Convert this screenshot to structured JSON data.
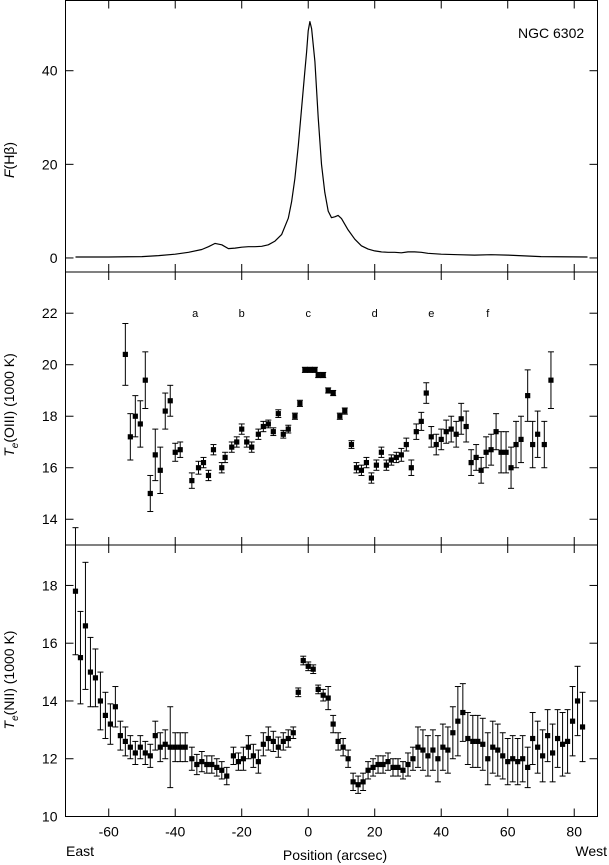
{
  "chart_data": [
    {
      "type": "line",
      "ylabel": "F(Hβ)",
      "annotation": "NGC 6302",
      "ylim": [
        -3,
        55
      ],
      "xlim": [
        -73,
        87
      ],
      "yticks": [
        0,
        20,
        40
      ],
      "x": [
        -70,
        -60,
        -50,
        -45,
        -40,
        -36,
        -32,
        -30,
        -28,
        -26,
        -24,
        -22,
        -20,
        -18,
        -16,
        -14,
        -12,
        -10,
        -8,
        -6,
        -5,
        -4,
        -3,
        -2,
        -1,
        -0.5,
        0,
        0.5,
        1,
        2,
        3,
        4,
        5,
        6,
        7,
        8,
        9,
        10,
        12,
        14,
        16,
        18,
        20,
        22,
        24,
        26,
        28,
        30,
        32,
        34,
        36,
        40,
        45,
        50,
        55,
        60,
        70,
        84
      ],
      "y": [
        0.2,
        0.2,
        0.3,
        0.5,
        0.8,
        1.2,
        1.8,
        2.4,
        3.1,
        2.8,
        2.0,
        2.1,
        2.3,
        2.4,
        2.4,
        2.5,
        2.8,
        3.6,
        5.0,
        8.5,
        12.0,
        17.0,
        24.0,
        32.0,
        40.0,
        44.0,
        48.5,
        50.5,
        49.0,
        42.0,
        30.0,
        20.0,
        14.0,
        10.0,
        8.6,
        8.8,
        9.1,
        8.4,
        6.0,
        4.0,
        2.6,
        1.9,
        1.5,
        1.3,
        1.2,
        1.2,
        1.1,
        1.3,
        1.3,
        1.2,
        1.0,
        0.8,
        0.7,
        0.6,
        0.7,
        0.6,
        0.3,
        0.2
      ]
    },
    {
      "type": "scatter",
      "ylabel": "Te(OIII) (1000 K)",
      "ylim": [
        13,
        23.6
      ],
      "xlim": [
        -73,
        87
      ],
      "yticks": [
        14,
        16,
        18,
        20,
        22
      ],
      "region_labels": [
        {
          "label": "a",
          "x": -34
        },
        {
          "label": "b",
          "x": -20
        },
        {
          "label": "c",
          "x": 0
        },
        {
          "label": "d",
          "x": 20
        },
        {
          "label": "e",
          "x": 37
        },
        {
          "label": "f",
          "x": 54
        }
      ],
      "points": [
        [
          -55,
          20.4,
          1.2
        ],
        [
          -53.5,
          17.2,
          0.9
        ],
        [
          -52,
          18.0,
          0.8
        ],
        [
          -50.5,
          17.7,
          0.9
        ],
        [
          -49,
          19.4,
          1.1
        ],
        [
          -47.5,
          15.0,
          0.7
        ],
        [
          -46,
          16.5,
          1.0
        ],
        [
          -44.5,
          15.9,
          0.9
        ],
        [
          -43,
          18.2,
          0.7
        ],
        [
          -41.5,
          18.6,
          0.6
        ],
        [
          -40,
          16.6,
          0.35
        ],
        [
          -38.5,
          16.7,
          0.3
        ],
        [
          -35,
          15.5,
          0.3
        ],
        [
          -33,
          16.0,
          0.25
        ],
        [
          -31.5,
          16.2,
          0.2
        ],
        [
          -30,
          15.7,
          0.2
        ],
        [
          -28.5,
          16.7,
          0.2
        ],
        [
          -26,
          16.0,
          0.2
        ],
        [
          -25,
          16.4,
          0.2
        ],
        [
          -23,
          16.8,
          0.2
        ],
        [
          -21.5,
          17.0,
          0.2
        ],
        [
          -20,
          17.5,
          0.2
        ],
        [
          -18.5,
          17.0,
          0.2
        ],
        [
          -17,
          16.8,
          0.2
        ],
        [
          -15,
          17.3,
          0.2
        ],
        [
          -13.5,
          17.6,
          0.2
        ],
        [
          -12,
          17.7,
          0.15
        ],
        [
          -10.5,
          17.4,
          0.15
        ],
        [
          -9,
          18.1,
          0.15
        ],
        [
          -7.5,
          17.3,
          0.15
        ],
        [
          -6,
          17.5,
          0.15
        ],
        [
          -4,
          18.0,
          0.12
        ],
        [
          -2.5,
          18.5,
          0.12
        ],
        [
          -1,
          19.8,
          0.1
        ],
        [
          0.5,
          19.8,
          0.1
        ],
        [
          2,
          19.8,
          0.1
        ],
        [
          3,
          19.6,
          0.1
        ],
        [
          4.5,
          19.6,
          0.1
        ],
        [
          6,
          19.0,
          0.1
        ],
        [
          7.5,
          18.9,
          0.1
        ],
        [
          9.5,
          18.0,
          0.12
        ],
        [
          11,
          18.2,
          0.12
        ],
        [
          13,
          16.9,
          0.15
        ],
        [
          14.5,
          16.0,
          0.2
        ],
        [
          16,
          15.9,
          0.2
        ],
        [
          17.5,
          16.2,
          0.2
        ],
        [
          19,
          15.6,
          0.2
        ],
        [
          20.5,
          16.1,
          0.2
        ],
        [
          22,
          16.6,
          0.2
        ],
        [
          23.5,
          16.1,
          0.2
        ],
        [
          25,
          16.3,
          0.2
        ],
        [
          26.5,
          16.4,
          0.2
        ],
        [
          28,
          16.5,
          0.25
        ],
        [
          29.5,
          16.9,
          0.25
        ],
        [
          31,
          16.0,
          0.3
        ],
        [
          32.5,
          17.4,
          0.3
        ],
        [
          34,
          17.8,
          0.35
        ],
        [
          35.5,
          18.9,
          0.4
        ],
        [
          37,
          17.2,
          0.4
        ],
        [
          38.5,
          16.9,
          0.4
        ],
        [
          40,
          17.1,
          0.4
        ],
        [
          41.5,
          17.4,
          0.45
        ],
        [
          43,
          17.5,
          0.5
        ],
        [
          44.5,
          17.3,
          0.5
        ],
        [
          46,
          17.9,
          0.6
        ],
        [
          47.5,
          17.6,
          0.6
        ],
        [
          49,
          16.2,
          0.5
        ],
        [
          50.5,
          16.4,
          0.5
        ],
        [
          52,
          15.9,
          0.5
        ],
        [
          53.5,
          16.6,
          0.6
        ],
        [
          55,
          16.7,
          0.6
        ],
        [
          56.5,
          17.4,
          0.7
        ],
        [
          58,
          16.6,
          0.8
        ],
        [
          59.5,
          16.6,
          0.8
        ],
        [
          61,
          16.0,
          0.8
        ],
        [
          62.5,
          16.9,
          0.9
        ],
        [
          64,
          17.1,
          0.9
        ],
        [
          66,
          18.8,
          1.0
        ],
        [
          67.5,
          16.9,
          0.9
        ],
        [
          69,
          17.3,
          0.9
        ],
        [
          71,
          16.9,
          0.9
        ],
        [
          73,
          19.4,
          1.1
        ]
      ]
    },
    {
      "type": "scatter",
      "ylabel": "Te(NII) (1000 K)",
      "xlabel": "Position (arcsec)",
      "left_label": "East",
      "right_label": "West",
      "ylim": [
        10,
        19.4
      ],
      "xlim": [
        -73,
        87
      ],
      "yticks": [
        10,
        12,
        14,
        16,
        18
      ],
      "xticks": [
        -60,
        -40,
        -20,
        0,
        20,
        40,
        60,
        80
      ],
      "points": [
        [
          -70,
          17.8,
          2.2
        ],
        [
          -68.5,
          15.5,
          1.6
        ],
        [
          -67,
          16.6,
          2.2
        ],
        [
          -65.5,
          15.0,
          1.2
        ],
        [
          -64,
          14.8,
          1.0
        ],
        [
          -62.5,
          14.0,
          1.0
        ],
        [
          -61,
          13.5,
          0.8
        ],
        [
          -59.5,
          13.2,
          0.7
        ],
        [
          -58,
          13.8,
          0.7
        ],
        [
          -56.5,
          12.8,
          0.5
        ],
        [
          -55,
          12.6,
          0.5
        ],
        [
          -53.5,
          12.4,
          0.4
        ],
        [
          -52,
          12.2,
          0.4
        ],
        [
          -50.5,
          12.4,
          0.4
        ],
        [
          -49,
          12.2,
          0.4
        ],
        [
          -47.5,
          12.1,
          0.4
        ],
        [
          -46,
          12.8,
          0.5
        ],
        [
          -44.5,
          12.4,
          0.5
        ],
        [
          -43,
          12.5,
          0.5
        ],
        [
          -41.5,
          12.4,
          1.4
        ],
        [
          -40,
          12.4,
          0.5
        ],
        [
          -38.5,
          12.4,
          0.5
        ],
        [
          -37,
          12.4,
          0.5
        ],
        [
          -35,
          12.0,
          0.4
        ],
        [
          -33.5,
          11.8,
          0.35
        ],
        [
          -32,
          11.9,
          0.35
        ],
        [
          -30.5,
          11.8,
          0.3
        ],
        [
          -29,
          11.8,
          0.3
        ],
        [
          -27.5,
          11.7,
          0.3
        ],
        [
          -26,
          11.6,
          0.3
        ],
        [
          -24.5,
          11.4,
          0.3
        ],
        [
          -22.5,
          12.1,
          0.3
        ],
        [
          -21,
          11.9,
          0.3
        ],
        [
          -19.5,
          12.0,
          0.4
        ],
        [
          -18,
          12.4,
          0.4
        ],
        [
          -16.5,
          12.1,
          0.4
        ],
        [
          -15,
          11.9,
          0.4
        ],
        [
          -13.5,
          12.5,
          0.4
        ],
        [
          -12,
          12.7,
          0.4
        ],
        [
          -10.5,
          12.6,
          0.35
        ],
        [
          -9,
          12.4,
          0.35
        ],
        [
          -7.5,
          12.6,
          0.3
        ],
        [
          -6,
          12.7,
          0.3
        ],
        [
          -4.5,
          12.9,
          0.2
        ],
        [
          -3,
          14.3,
          0.15
        ],
        [
          -1.5,
          15.4,
          0.15
        ],
        [
          0,
          15.2,
          0.15
        ],
        [
          1.5,
          15.1,
          0.15
        ],
        [
          3,
          14.4,
          0.15
        ],
        [
          4.5,
          14.2,
          0.2
        ],
        [
          6,
          14.1,
          0.4
        ],
        [
          7.5,
          13.2,
          0.3
        ],
        [
          9,
          12.6,
          0.3
        ],
        [
          10.5,
          12.4,
          0.3
        ],
        [
          12,
          12.0,
          0.3
        ],
        [
          13.5,
          11.2,
          0.3
        ],
        [
          15,
          11.1,
          0.3
        ],
        [
          16.5,
          11.2,
          0.3
        ],
        [
          18,
          11.6,
          0.3
        ],
        [
          19.5,
          11.7,
          0.3
        ],
        [
          21,
          11.8,
          0.3
        ],
        [
          22.5,
          11.8,
          0.3
        ],
        [
          24,
          11.9,
          0.3
        ],
        [
          25.5,
          11.7,
          0.3
        ],
        [
          27,
          11.7,
          0.3
        ],
        [
          28.5,
          11.6,
          0.3
        ],
        [
          30,
          11.8,
          0.4
        ],
        [
          31.5,
          12.0,
          0.4
        ],
        [
          33,
          12.4,
          0.7
        ],
        [
          34.5,
          12.3,
          0.7
        ],
        [
          36,
          12.1,
          0.7
        ],
        [
          37.5,
          12.3,
          0.7
        ],
        [
          39,
          12.0,
          0.8
        ],
        [
          40.5,
          12.4,
          0.8
        ],
        [
          42,
          12.3,
          0.8
        ],
        [
          43.5,
          12.9,
          0.9
        ],
        [
          45,
          13.3,
          1.2
        ],
        [
          46.5,
          13.6,
          1.0
        ],
        [
          48,
          12.7,
          0.9
        ],
        [
          49.5,
          12.6,
          0.9
        ],
        [
          51,
          12.6,
          0.9
        ],
        [
          52.5,
          12.5,
          0.9
        ],
        [
          54,
          12.0,
          0.9
        ],
        [
          55.5,
          12.4,
          0.9
        ],
        [
          57,
          12.3,
          0.9
        ],
        [
          58.5,
          12.1,
          0.8
        ],
        [
          60,
          11.9,
          0.8
        ],
        [
          61.5,
          12.0,
          0.8
        ],
        [
          63,
          11.9,
          0.8
        ],
        [
          64.5,
          12.0,
          0.8
        ],
        [
          66,
          11.7,
          0.7
        ],
        [
          67.5,
          12.7,
          0.9
        ],
        [
          69,
          12.4,
          0.9
        ],
        [
          70.5,
          12.1,
          0.9
        ],
        [
          72,
          12.8,
          0.9
        ],
        [
          73.5,
          12.2,
          1.0
        ],
        [
          75,
          12.7,
          1.0
        ],
        [
          76.5,
          12.5,
          1.1
        ],
        [
          78,
          12.6,
          1.1
        ],
        [
          79.5,
          13.3,
          1.2
        ],
        [
          81,
          14.0,
          1.2
        ],
        [
          82.5,
          13.1,
          1.2
        ]
      ]
    }
  ]
}
